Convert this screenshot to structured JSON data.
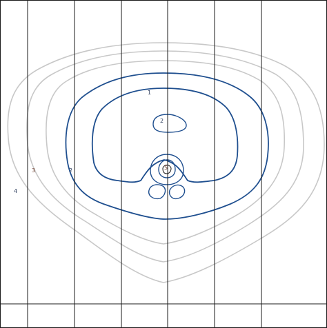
{
  "colors": {
    "background": "#ffffff",
    "grid": "#1a1a1a",
    "outer_contours": "#c8c8c8",
    "inner_contours": "#1f4f8f"
  },
  "labels": {
    "l1": "1",
    "l2": "2",
    "l3": "2",
    "l4": "3",
    "l5": "4",
    "l6": "5"
  }
}
